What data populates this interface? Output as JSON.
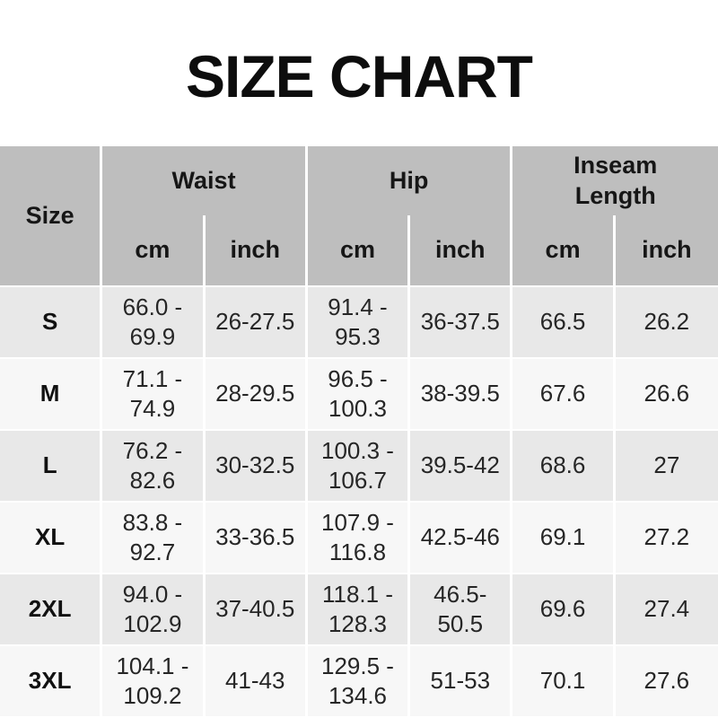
{
  "title": "SIZE CHART",
  "table": {
    "size_label": "Size",
    "groups": [
      {
        "label": "Waist",
        "units": [
          "cm",
          "inch"
        ]
      },
      {
        "label": "Hip",
        "units": [
          "cm",
          "inch"
        ]
      },
      {
        "label": "Inseam\nLength",
        "units": [
          "cm",
          "inch"
        ]
      }
    ],
    "rows": [
      {
        "size": "S",
        "waist_cm": "66.0 -\n69.9",
        "waist_inch": "26-27.5",
        "hip_cm": "91.4 -\n95.3",
        "hip_inch": "36-37.5",
        "inseam_cm": "66.5",
        "inseam_inch": "26.2"
      },
      {
        "size": "M",
        "waist_cm": "71.1 -\n74.9",
        "waist_inch": "28-29.5",
        "hip_cm": "96.5 -\n100.3",
        "hip_inch": "38-39.5",
        "inseam_cm": "67.6",
        "inseam_inch": "26.6"
      },
      {
        "size": "L",
        "waist_cm": "76.2 -\n82.6",
        "waist_inch": "30-32.5",
        "hip_cm": "100.3 -\n106.7",
        "hip_inch": "39.5-42",
        "inseam_cm": "68.6",
        "inseam_inch": "27"
      },
      {
        "size": "XL",
        "waist_cm": "83.8 -\n92.7",
        "waist_inch": "33-36.5",
        "hip_cm": "107.9 -\n116.8",
        "hip_inch": "42.5-46",
        "inseam_cm": "69.1",
        "inseam_inch": "27.2"
      },
      {
        "size": "2XL",
        "waist_cm": "94.0 -\n102.9",
        "waist_inch": "37-40.5",
        "hip_cm": "118.1 -\n128.3",
        "hip_inch": "46.5-\n50.5",
        "inseam_cm": "69.6",
        "inseam_inch": "27.4"
      },
      {
        "size": "3XL",
        "waist_cm": "104.1 -\n109.2",
        "waist_inch": "41-43",
        "hip_cm": "129.5 -\n134.6",
        "hip_inch": "51-53",
        "inseam_cm": "70.1",
        "inseam_inch": "27.6"
      }
    ]
  },
  "colors": {
    "header_bg": "#bebebe",
    "row_dark": "#e8e8e8",
    "row_light": "#f7f7f7",
    "divider": "#ffffff",
    "text": "#262626",
    "title_color": "#0d0d0d"
  }
}
